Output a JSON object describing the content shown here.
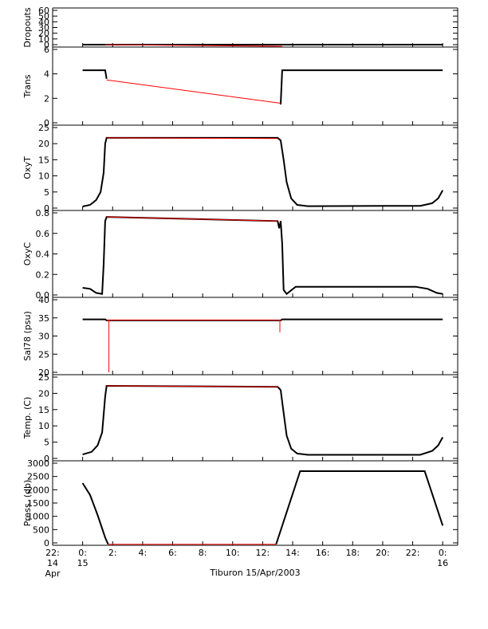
{
  "caption": "Tiburon 15/Apr/2003",
  "colors": {
    "data": "#000000",
    "interp": "#ff0000",
    "axis": "#000000"
  },
  "chart_data": [
    {
      "type": "line",
      "ylabel": "Dropouts",
      "ylim": [
        0,
        60
      ],
      "yticks": [
        0,
        10,
        20,
        30,
        40,
        50,
        60
      ],
      "ytick_labels": [
        "0",
        "10",
        "20",
        "30",
        "40",
        "50",
        "60"
      ],
      "series": [
        {
          "style": "data",
          "points": [
            [
              0,
              0
            ],
            [
              1.5,
              0
            ],
            [
              13.3,
              0
            ],
            [
              24,
              0
            ]
          ]
        },
        {
          "style": "interp",
          "points": [
            [
              1.5,
              0
            ],
            [
              13.3,
              -3
            ]
          ]
        }
      ]
    },
    {
      "type": "line",
      "ylabel": "Trans",
      "ylim": [
        0,
        6
      ],
      "yticks": [
        0,
        2,
        4,
        6
      ],
      "ytick_labels": [
        "0",
        "2",
        "4",
        "6"
      ],
      "series": [
        {
          "style": "data",
          "points": [
            [
              0,
              4.3
            ],
            [
              1.5,
              4.3
            ],
            [
              1.6,
              3.6
            ]
          ]
        },
        {
          "style": "data",
          "points": [
            [
              13.2,
              1.5
            ],
            [
              13.3,
              4.3
            ],
            [
              24,
              4.3
            ]
          ]
        },
        {
          "style": "interp",
          "points": [
            [
              1.6,
              3.5
            ],
            [
              13.2,
              1.6
            ]
          ]
        }
      ]
    },
    {
      "type": "line",
      "ylabel": "OxyT",
      "ylim": [
        0,
        25
      ],
      "yticks": [
        0,
        5,
        10,
        15,
        20,
        25
      ],
      "ytick_labels": [
        "0",
        "5",
        "10",
        "15",
        "20",
        "25"
      ],
      "series": [
        {
          "style": "data",
          "points": [
            [
              0,
              0.5
            ],
            [
              0.5,
              1
            ],
            [
              0.9,
              2.5
            ],
            [
              1.2,
              5
            ],
            [
              1.4,
              11
            ],
            [
              1.5,
              20
            ],
            [
              1.6,
              21.8
            ],
            [
              13.0,
              21.8
            ],
            [
              13.2,
              21
            ],
            [
              13.4,
              15
            ],
            [
              13.6,
              8
            ],
            [
              13.9,
              3
            ],
            [
              14.3,
              1
            ],
            [
              15,
              0.6
            ],
            [
              20,
              0.7
            ],
            [
              22.5,
              0.7
            ],
            [
              23.3,
              1.5
            ],
            [
              23.7,
              3
            ],
            [
              24,
              5.5
            ]
          ]
        },
        {
          "style": "interp",
          "points": [
            [
              1.6,
              21.8
            ],
            [
              13.0,
              21.6
            ]
          ]
        }
      ]
    },
    {
      "type": "line",
      "ylabel": "OxyC",
      "ylim": [
        0,
        0.8
      ],
      "yticks": [
        0,
        0.2,
        0.4,
        0.6,
        0.8
      ],
      "ytick_labels": [
        "0.0",
        "0.2",
        "0.4",
        "0.6",
        "0.8"
      ],
      "series": [
        {
          "style": "data",
          "points": [
            [
              0,
              0.07
            ],
            [
              0.5,
              0.06
            ],
            [
              0.9,
              0.02
            ],
            [
              1.3,
              0.01
            ],
            [
              1.4,
              0.3
            ],
            [
              1.5,
              0.72
            ],
            [
              1.6,
              0.76
            ],
            [
              13.0,
              0.72
            ],
            [
              13.1,
              0.65
            ],
            [
              13.2,
              0.72
            ],
            [
              13.3,
              0.5
            ],
            [
              13.4,
              0.05
            ],
            [
              13.6,
              0.01
            ],
            [
              14.2,
              0.08
            ],
            [
              15,
              0.08
            ],
            [
              22.2,
              0.08
            ],
            [
              23,
              0.06
            ],
            [
              23.6,
              0.02
            ],
            [
              24,
              0.01
            ]
          ]
        },
        {
          "style": "interp",
          "points": [
            [
              1.6,
              0.76
            ],
            [
              13.0,
              0.72
            ]
          ]
        }
      ]
    },
    {
      "type": "line",
      "ylabel": "Sal78 (psu)",
      "ylim": [
        20,
        40
      ],
      "yticks": [
        20,
        25,
        30,
        35,
        40
      ],
      "ytick_labels": [
        "20",
        "25",
        "30",
        "35",
        "40"
      ],
      "series": [
        {
          "style": "data",
          "points": [
            [
              0,
              34.6
            ],
            [
              1.5,
              34.6
            ],
            [
              1.6,
              34.3
            ],
            [
              13.2,
              34.3
            ],
            [
              13.3,
              34.6
            ],
            [
              24,
              34.6
            ]
          ]
        },
        {
          "style": "interp",
          "points": [
            [
              1.6,
              34.4
            ],
            [
              13.2,
              34.4
            ]
          ]
        },
        {
          "style": "interp",
          "points": [
            [
              1.75,
              34.4
            ],
            [
              1.75,
              20
            ]
          ]
        },
        {
          "style": "interp",
          "points": [
            [
              13.15,
              34.4
            ],
            [
              13.15,
              31
            ]
          ]
        }
      ]
    },
    {
      "type": "line",
      "ylabel": "Temp. (C)",
      "ylim": [
        0,
        25
      ],
      "yticks": [
        0,
        5,
        10,
        15,
        20,
        25
      ],
      "ytick_labels": [
        "0",
        "5",
        "10",
        "15",
        "20",
        "25"
      ],
      "series": [
        {
          "style": "data",
          "points": [
            [
              0,
              1.2
            ],
            [
              0.6,
              2
            ],
            [
              1.0,
              4
            ],
            [
              1.3,
              8
            ],
            [
              1.5,
              19
            ],
            [
              1.6,
              22.3
            ],
            [
              13.0,
              22
            ],
            [
              13.2,
              21
            ],
            [
              13.4,
              14
            ],
            [
              13.6,
              7
            ],
            [
              13.9,
              3
            ],
            [
              14.3,
              1.5
            ],
            [
              15,
              1.1
            ],
            [
              22.5,
              1.1
            ],
            [
              23.3,
              2.3
            ],
            [
              23.7,
              4
            ],
            [
              24,
              6.5
            ]
          ]
        },
        {
          "style": "interp",
          "points": [
            [
              1.6,
              22.3
            ],
            [
              13.0,
              22
            ]
          ]
        }
      ]
    },
    {
      "type": "line",
      "ylabel": "Press. (db)",
      "ylim": [
        0,
        3000
      ],
      "yticks": [
        0,
        500,
        1000,
        1500,
        2000,
        2500,
        3000
      ],
      "ytick_labels": [
        "0",
        "500",
        "1000",
        "1500",
        "2000",
        "2500",
        "3000"
      ],
      "series": [
        {
          "style": "data",
          "points": [
            [
              0,
              2250
            ],
            [
              0.5,
              1800
            ],
            [
              1.0,
              1050
            ],
            [
              1.5,
              200
            ],
            [
              1.7,
              -50
            ]
          ]
        },
        {
          "style": "data",
          "points": [
            [
              12.9,
              -50
            ],
            [
              14.5,
              2700
            ],
            [
              22.8,
              2700
            ],
            [
              24,
              650
            ]
          ]
        },
        {
          "style": "interp",
          "points": [
            [
              1.7,
              -50
            ],
            [
              12.9,
              -50
            ]
          ]
        }
      ]
    }
  ],
  "x_axis": {
    "xlim": [
      -2,
      25
    ],
    "ticks": [
      {
        "x": -2,
        "line1": "22:",
        "line2": "14",
        "line3": "Apr"
      },
      {
        "x": 0,
        "line1": "0:",
        "line2": "15",
        "line3": ""
      },
      {
        "x": 2,
        "line1": "2:",
        "line2": "",
        "line3": ""
      },
      {
        "x": 4,
        "line1": "4:",
        "line2": "",
        "line3": ""
      },
      {
        "x": 6,
        "line1": "6:",
        "line2": "",
        "line3": ""
      },
      {
        "x": 8,
        "line1": "8:",
        "line2": "",
        "line3": ""
      },
      {
        "x": 10,
        "line1": "10:",
        "line2": "",
        "line3": ""
      },
      {
        "x": 12,
        "line1": "12:",
        "line2": "",
        "line3": ""
      },
      {
        "x": 14,
        "line1": "14:",
        "line2": "",
        "line3": ""
      },
      {
        "x": 16,
        "line1": "16:",
        "line2": "",
        "line3": ""
      },
      {
        "x": 18,
        "line1": "18:",
        "line2": "",
        "line3": ""
      },
      {
        "x": 20,
        "line1": "20:",
        "line2": "",
        "line3": ""
      },
      {
        "x": 22,
        "line1": "22:",
        "line2": "",
        "line3": ""
      },
      {
        "x": 24,
        "line1": "0:",
        "line2": "16",
        "line3": ""
      }
    ]
  }
}
